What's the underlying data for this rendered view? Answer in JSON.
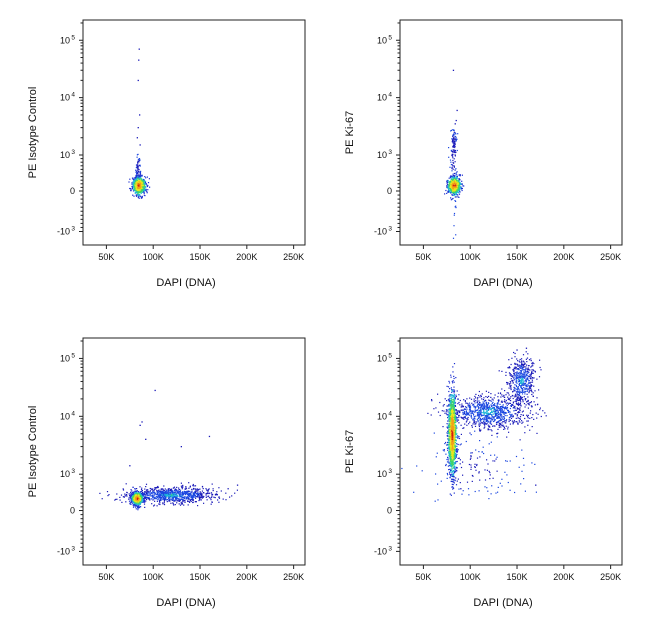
{
  "chart_data": [
    {
      "type": "scatter",
      "xlabel": "DAPI (DNA)",
      "ylabel": "PE Isotype Control",
      "x_ticks": [
        "50K",
        "100K",
        "150K",
        "200K",
        "250K"
      ],
      "y_ticks": [
        {
          "base": "10",
          "exp": "5"
        },
        {
          "base": "10",
          "exp": "4"
        },
        {
          "base": "10",
          "exp": "3"
        },
        {
          "base": "0",
          "exp": ""
        },
        {
          "base": "-10",
          "exp": "3"
        }
      ],
      "x_scale": "linear",
      "y_scale": "biexponential",
      "xlim": [
        25000,
        262144
      ],
      "ylim": [
        -2000,
        262144
      ],
      "clusters": [
        {
          "x": 85000,
          "y": 150,
          "n": 650,
          "sx": 3500,
          "sy": 120,
          "density": "high"
        },
        {
          "x": 84000,
          "y": 600,
          "n": 60,
          "sx": 1500,
          "sy": 250,
          "density": "low"
        }
      ],
      "outliers": [
        [
          85000,
          70000
        ],
        [
          84500,
          45000
        ],
        [
          84000,
          20000
        ],
        [
          85500,
          5000
        ],
        [
          84000,
          3000
        ],
        [
          83000,
          2000
        ],
        [
          86000,
          1500
        ]
      ]
    },
    {
      "type": "scatter",
      "xlabel": "DAPI (DNA)",
      "ylabel": "PE Ki-67",
      "x_ticks": [
        "50K",
        "100K",
        "150K",
        "200K",
        "250K"
      ],
      "y_ticks": [
        {
          "base": "10",
          "exp": "5"
        },
        {
          "base": "10",
          "exp": "4"
        },
        {
          "base": "10",
          "exp": "3"
        },
        {
          "base": "0",
          "exp": ""
        },
        {
          "base": "-10",
          "exp": "3"
        }
      ],
      "x_scale": "linear",
      "y_scale": "biexponential",
      "xlim": [
        25000,
        262144
      ],
      "ylim": [
        -2000,
        262144
      ],
      "clusters": [
        {
          "x": 83000,
          "y": 150,
          "n": 600,
          "sx": 3500,
          "sy": 120,
          "density": "high"
        },
        {
          "x": 82500,
          "y": 1200,
          "n": 140,
          "sx": 2000,
          "sy": 900,
          "density": "low"
        }
      ],
      "outliers": [
        [
          82000,
          30000
        ],
        [
          86000,
          6000
        ],
        [
          85000,
          4000
        ],
        [
          84000,
          3500
        ],
        [
          83000,
          2500
        ]
      ]
    },
    {
      "type": "scatter",
      "xlabel": "DAPI (DNA)",
      "ylabel": "PE Isotype Control",
      "x_ticks": [
        "50K",
        "100K",
        "150K",
        "200K",
        "250K"
      ],
      "y_ticks": [
        {
          "base": "10",
          "exp": "5"
        },
        {
          "base": "10",
          "exp": "4"
        },
        {
          "base": "10",
          "exp": "3"
        },
        {
          "base": "0",
          "exp": ""
        },
        {
          "base": "-10",
          "exp": "3"
        }
      ],
      "x_scale": "linear",
      "y_scale": "biexponential",
      "xlim": [
        25000,
        262144
      ],
      "ylim": [
        -2000,
        262144
      ],
      "clusters": [
        {
          "x": 83000,
          "y": 330,
          "n": 700,
          "sx": 3000,
          "sy": 90,
          "density": "high"
        },
        {
          "x": 120000,
          "y": 420,
          "n": 900,
          "sx": 24000,
          "sy": 110,
          "density": "medium"
        }
      ],
      "outliers": [
        [
          102000,
          28000
        ],
        [
          88000,
          8000
        ],
        [
          86000,
          7000
        ],
        [
          92000,
          4000
        ],
        [
          160000,
          4500
        ],
        [
          130000,
          3000
        ],
        [
          75000,
          1400
        ],
        [
          190000,
          700
        ],
        [
          180000,
          600
        ]
      ]
    },
    {
      "type": "scatter",
      "xlabel": "DAPI (DNA)",
      "ylabel": "PE Ki-67",
      "x_ticks": [
        "50K",
        "100K",
        "150K",
        "200K",
        "250K"
      ],
      "y_ticks": [
        {
          "base": "10",
          "exp": "5"
        },
        {
          "base": "10",
          "exp": "4"
        },
        {
          "base": "10",
          "exp": "3"
        },
        {
          "base": "0",
          "exp": ""
        },
        {
          "base": "-10",
          "exp": "3"
        }
      ],
      "x_scale": "linear",
      "y_scale": "biexponential",
      "xlim": [
        25000,
        262144
      ],
      "ylim": [
        -2000,
        262144
      ],
      "clusters": [
        {
          "x": 81000,
          "y": 5000,
          "n": 1400,
          "sx": 2200,
          "sy_log": 0.35,
          "density": "high"
        },
        {
          "x": 120000,
          "y": 12000,
          "n": 900,
          "sx": 22000,
          "sy_log": 0.15,
          "density": "medium"
        },
        {
          "x": 155000,
          "y": 40000,
          "n": 500,
          "sx": 7000,
          "sy_log": 0.2,
          "density": "medium"
        },
        {
          "x": 105000,
          "y": 1200,
          "n": 140,
          "sx": 25000,
          "sy_log": 0.25,
          "density": "low"
        }
      ],
      "outliers": [
        [
          170000,
          700
        ],
        [
          160000,
          150000
        ],
        [
          150000,
          140000
        ],
        [
          90000,
          600
        ]
      ]
    }
  ]
}
